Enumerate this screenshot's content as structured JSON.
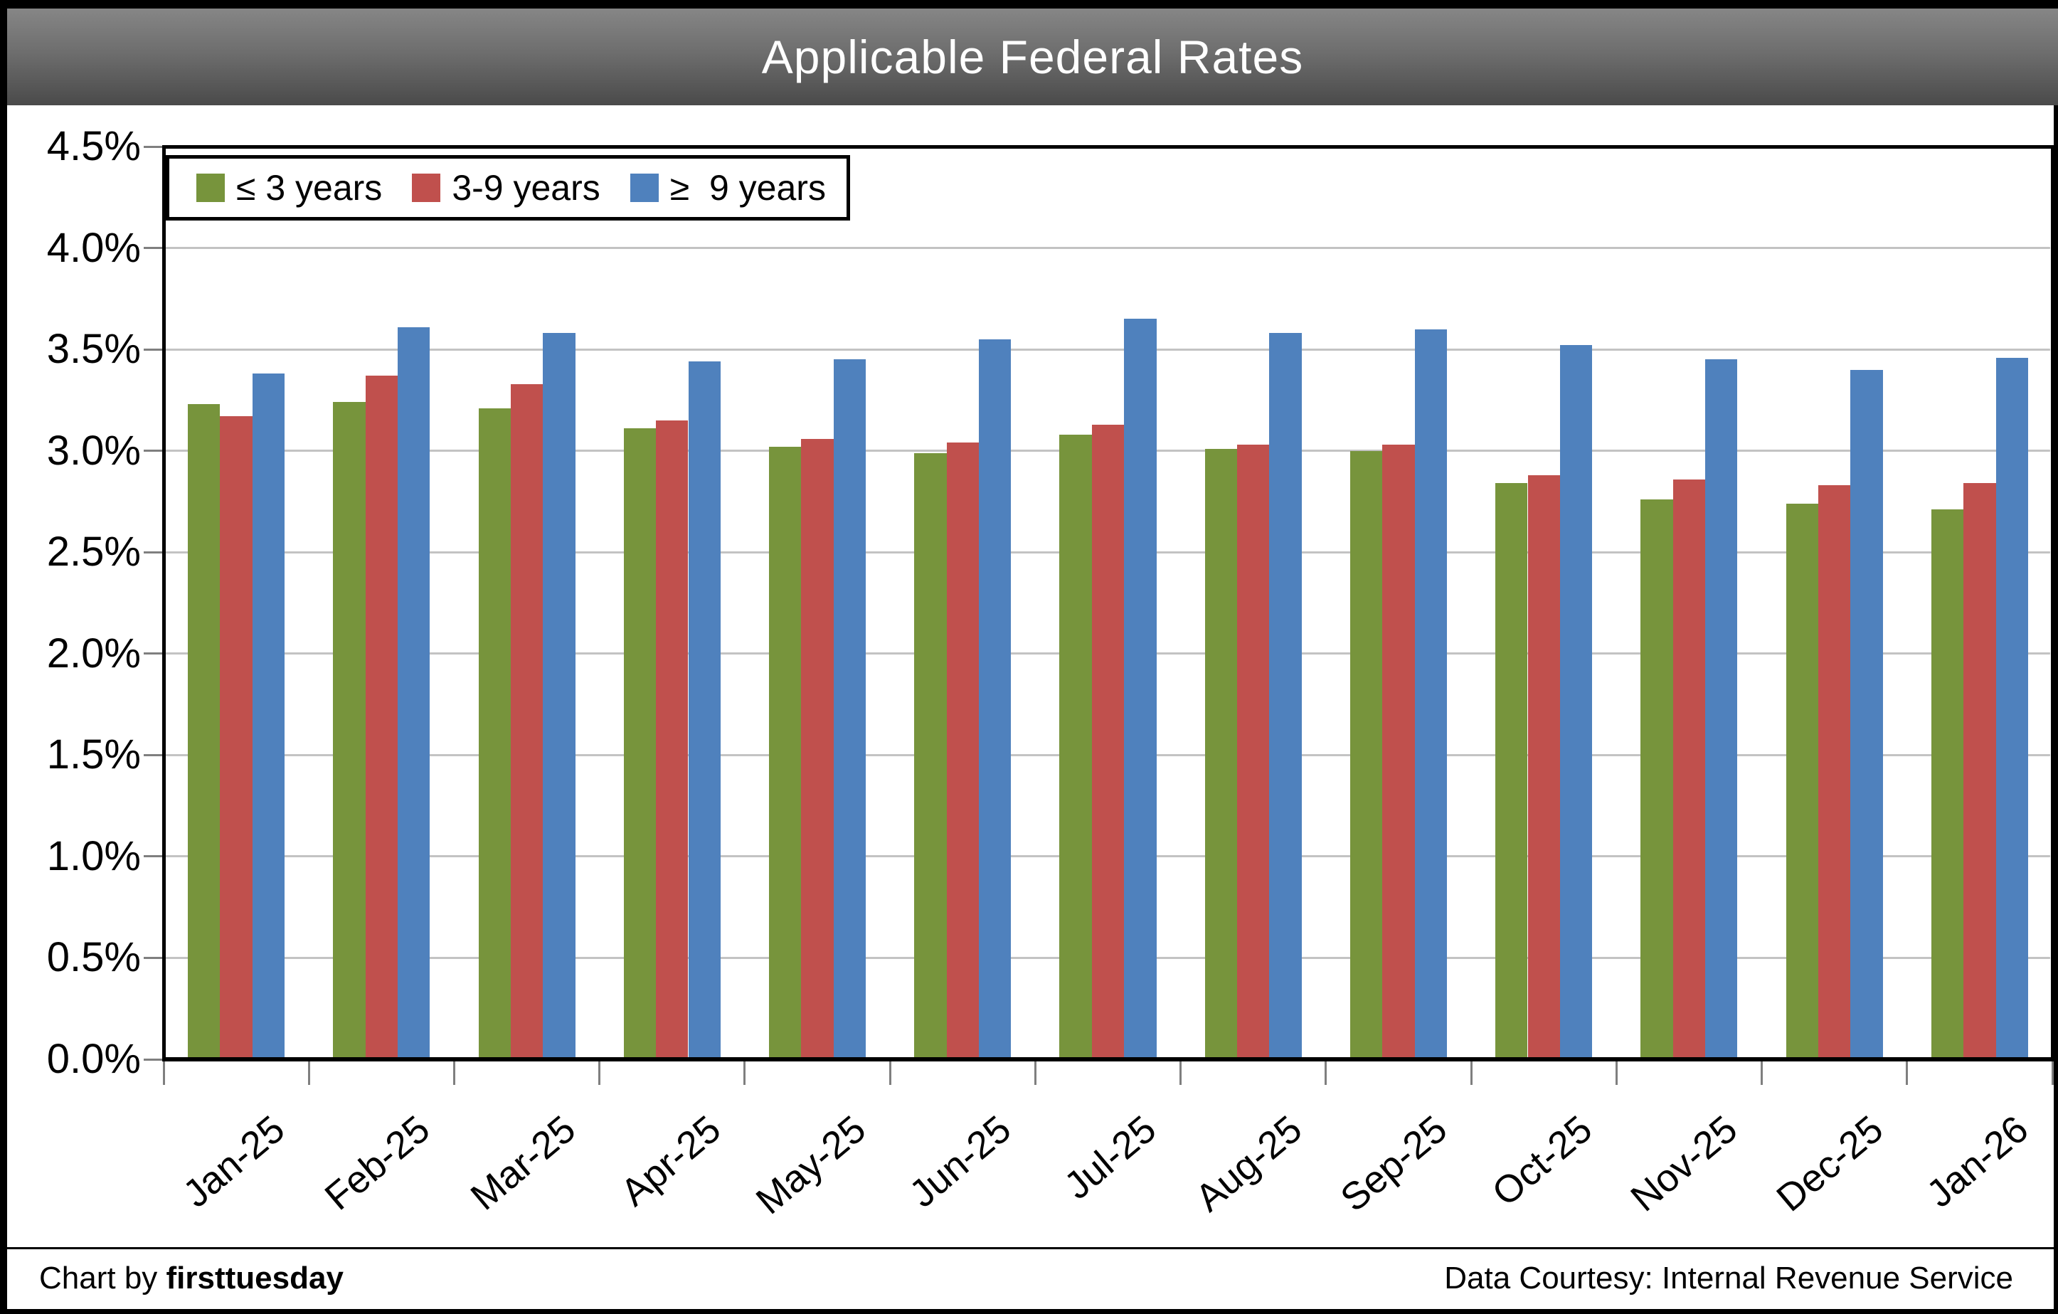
{
  "title": "Applicable Federal Rates",
  "footer": {
    "left_prefix": "Chart by ",
    "left_brand": "firsttuesday",
    "right": "Data Courtesy: Internal Revenue Service"
  },
  "colors": {
    "series_green": "#77943C",
    "series_red": "#C0504D",
    "series_blue": "#4F81BD",
    "gridline": "#C3C3C3",
    "tick": "#7F7F7F",
    "axis": "#000000",
    "title_bg_top": "#868686",
    "title_bg_bottom": "#4A4A4A",
    "title_text": "#FFFFFF"
  },
  "chart_data": {
    "type": "bar",
    "title": "Applicable Federal Rates",
    "categories": [
      "Jan-25",
      "Feb-25",
      "Mar-25",
      "Apr-25",
      "May-25",
      "Jun-25",
      "Jul-25",
      "Aug-25",
      "Sep-25",
      "Oct-25",
      "Nov-25",
      "Dec-25",
      "Jan-26"
    ],
    "series": [
      {
        "name": "≤ 3 years",
        "color": "#77943C",
        "values": [
          3.23,
          3.24,
          3.21,
          3.11,
          3.02,
          2.99,
          3.08,
          3.01,
          3.0,
          2.84,
          2.76,
          2.74,
          2.71
        ]
      },
      {
        "name": "3-9 years",
        "color": "#C0504D",
        "values": [
          3.17,
          3.37,
          3.33,
          3.15,
          3.06,
          3.04,
          3.13,
          3.03,
          3.03,
          2.88,
          2.86,
          2.83,
          2.84
        ]
      },
      {
        "name": "≥  9 years",
        "color": "#4F81BD",
        "values": [
          3.38,
          3.61,
          3.58,
          3.44,
          3.45,
          3.55,
          3.65,
          3.58,
          3.6,
          3.52,
          3.45,
          3.4,
          3.46
        ]
      }
    ],
    "xlabel": "",
    "ylabel": "",
    "ylim": [
      0,
      4.5
    ],
    "ytick_step": 0.5,
    "ytick_labels": [
      "4.5%",
      "4.0%",
      "3.5%",
      "3.0%",
      "2.5%",
      "2.0%",
      "1.5%",
      "1.0%",
      "0.5%",
      "0.0%"
    ],
    "grid": true,
    "legend_position": "top-left-inside"
  }
}
